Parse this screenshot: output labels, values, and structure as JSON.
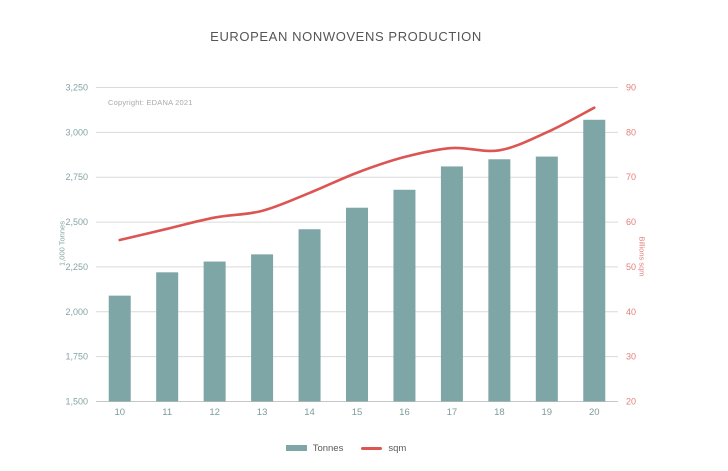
{
  "chart_data": {
    "type": "bar",
    "title": "EUROPEAN NONWOVENS PRODUCTION",
    "categories": [
      "10",
      "11",
      "12",
      "13",
      "14",
      "15",
      "16",
      "17",
      "18",
      "19",
      "20"
    ],
    "series": [
      {
        "name": "Tonnes",
        "kind": "bar",
        "axis": "left",
        "values": [
          2090,
          2220,
          2280,
          2320,
          2460,
          2580,
          2680,
          2810,
          2850,
          2865,
          3070
        ]
      },
      {
        "name": "sqm",
        "kind": "line",
        "axis": "right",
        "values": [
          56,
          58.5,
          61,
          62.5,
          66.5,
          71,
          74.5,
          76.5,
          76,
          80,
          85.5
        ]
      }
    ],
    "left_axis": {
      "title": "1,000 Tonnes",
      "min": 1500,
      "max": 3250,
      "step": 250,
      "tick_labels": [
        "1,500",
        "1,750",
        "2,000",
        "2,250",
        "2,500",
        "2,750",
        "3,000",
        "3,250"
      ]
    },
    "right_axis": {
      "title": "Billions sqm",
      "min": 20,
      "max": 90,
      "step": 10,
      "tick_labels": [
        "20",
        "30",
        "40",
        "50",
        "60",
        "70",
        "80",
        "90"
      ]
    },
    "annotations": {
      "copyright": "Copyright: EDANA 2021"
    },
    "grid": true,
    "legend_position": "bottom",
    "colors": {
      "bar": "#7ea6a6",
      "line": "#db5552",
      "left_ticks": "#85a3a3",
      "right_ticks": "#e2807c",
      "x_ticks": "#7e9a9a",
      "grid": "#dadada",
      "baseline": "#c6c6c6",
      "title": "#555555",
      "legend_text": "#5a5a5a"
    }
  }
}
